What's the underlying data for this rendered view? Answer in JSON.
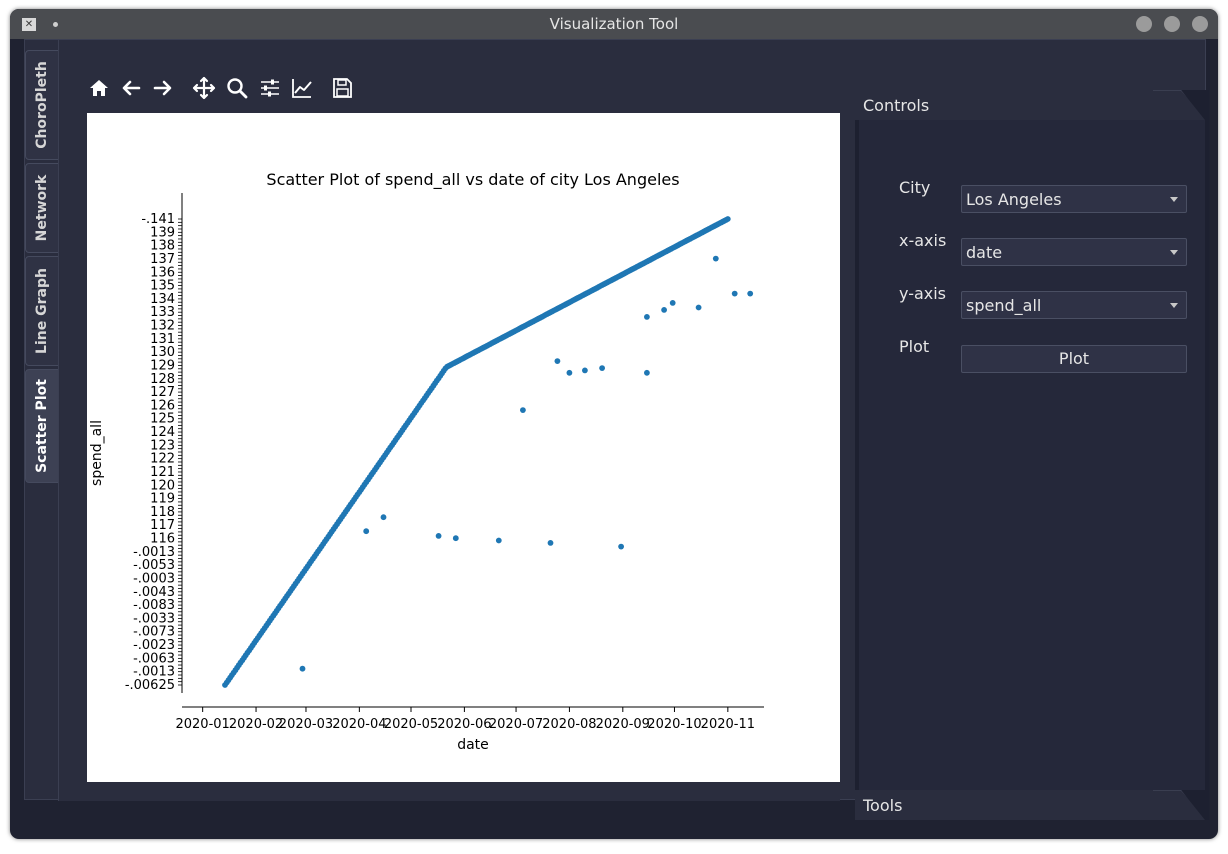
{
  "window": {
    "title": "Visualization Tool"
  },
  "tabs": [
    {
      "label": "ChoroPleth"
    },
    {
      "label": "Network"
    },
    {
      "label": "Line Graph"
    },
    {
      "label": "Scatter Plot",
      "active": true
    }
  ],
  "toolbar": {
    "icons": [
      "home-icon",
      "back-arrow-icon",
      "forward-arrow-icon",
      "pan-icon",
      "zoom-icon",
      "configure-subplots-icon",
      "edit-axes-icon",
      "save-icon"
    ]
  },
  "controls": {
    "header": "Controls",
    "city_label": "City",
    "city_value": "Los Angeles",
    "xaxis_label": "x-axis",
    "xaxis_value": "date",
    "yaxis_label": "y-axis",
    "yaxis_value": "spend_all",
    "plot_label": "Plot",
    "plot_button": "Plot"
  },
  "tools": {
    "header": "Tools"
  },
  "colors": {
    "point": "#1f77b4",
    "background": "#1f2231",
    "panel": "#25283a"
  },
  "chart_data": {
    "type": "scatter",
    "title": "Scatter Plot of spend_all vs date of city Los Angeles",
    "xlabel": "date",
    "ylabel": "spend_all",
    "x_ticks": [
      "2020-01",
      "2020-02",
      "2020-03",
      "2020-04",
      "2020-05",
      "2020-06",
      "2020-07",
      "2020-08",
      "2020-09",
      "2020-10",
      "2020-11"
    ],
    "y_ticks_top": "-.141",
    "y_ticks_bottom": "-.00625",
    "main_trend": {
      "start_date": "2020-01-14",
      "end_date": "2020-11-01"
    },
    "outliers": [
      {
        "date": "2020-02-28",
        "y_rank": 0.035
      },
      {
        "date": "2020-04-05",
        "y_rank": 0.33
      },
      {
        "date": "2020-04-15",
        "y_rank": 0.36
      },
      {
        "date": "2020-05-17",
        "y_rank": 0.32
      },
      {
        "date": "2020-05-27",
        "y_rank": 0.315
      },
      {
        "date": "2020-06-21",
        "y_rank": 0.31
      },
      {
        "date": "2020-07-21",
        "y_rank": 0.305
      },
      {
        "date": "2020-08-31",
        "y_rank": 0.297
      },
      {
        "date": "2020-07-25",
        "y_rank": 0.695
      },
      {
        "date": "2020-08-01",
        "y_rank": 0.67
      },
      {
        "date": "2020-08-10",
        "y_rank": 0.675
      },
      {
        "date": "2020-08-20",
        "y_rank": 0.68
      },
      {
        "date": "2020-09-15",
        "y_rank": 0.67
      },
      {
        "date": "2020-09-30",
        "y_rank": 0.82
      },
      {
        "date": "2020-10-15",
        "y_rank": 0.81
      },
      {
        "date": "2020-07-05",
        "y_rank": 0.59
      },
      {
        "date": "2020-09-15",
        "y_rank": 0.79
      },
      {
        "date": "2020-09-25",
        "y_rank": 0.805
      },
      {
        "date": "2020-11-05",
        "y_rank": 0.84
      },
      {
        "date": "2020-11-14",
        "y_rank": 0.84
      },
      {
        "date": "2020-10-25",
        "y_rank": 0.915
      }
    ]
  }
}
